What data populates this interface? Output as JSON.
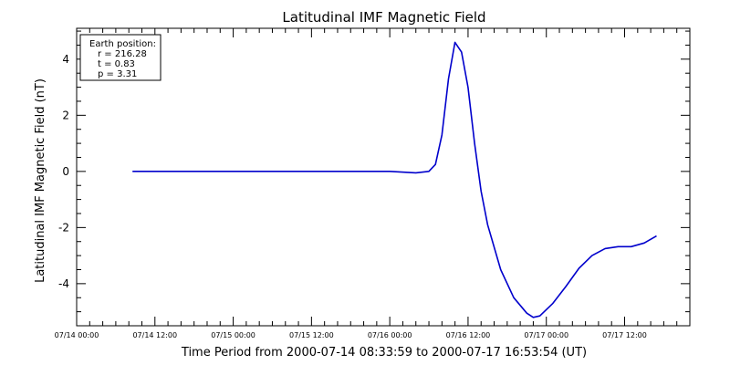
{
  "chart_data": {
    "type": "line",
    "title": "Latitudinal IMF Magnetic Field",
    "xlabel": "Time Period from 2000-07-14 08:33:59 to 2000-07-17 16:53:54 (UT)",
    "ylabel": "Latitudinal IMF Magnetic Field (nT)",
    "xlim": [
      "2000-07-14T00:00",
      "2000-07-17T22:00"
    ],
    "ylim": [
      -5.5,
      5.1
    ],
    "x_tick_labels": [
      "07/14 00:00",
      "07/14 12:00",
      "07/15 00:00",
      "07/15 12:00",
      "07/16 00:00",
      "07/16 12:00",
      "07/17 00:00",
      "07/17 12:00"
    ],
    "x_ticks": [
      "2000-07-14T00:00",
      "2000-07-14T12:00",
      "2000-07-15T00:00",
      "2000-07-15T12:00",
      "2000-07-16T00:00",
      "2000-07-16T12:00",
      "2000-07-17T00:00",
      "2000-07-17T12:00"
    ],
    "y_ticks": [
      4,
      2,
      0,
      -2,
      -4
    ],
    "y_tick_labels": [
      "4",
      "2",
      "0",
      "-2",
      "-4"
    ],
    "grid": false,
    "legend_box": {
      "placement": "top-left",
      "lines": [
        "Earth position:",
        "r = 216.28",
        "t = 0.83",
        "p = 3.31"
      ]
    },
    "series": [
      {
        "color": "#0000cc",
        "points": [
          [
            "2000-07-14T08:34",
            0.0
          ],
          [
            "2000-07-16T00:00",
            0.0
          ],
          [
            "2000-07-16T04:00",
            -0.05
          ],
          [
            "2000-07-16T06:00",
            0.0
          ],
          [
            "2000-07-16T07:00",
            0.25
          ],
          [
            "2000-07-16T08:00",
            1.3
          ],
          [
            "2000-07-16T09:00",
            3.3
          ],
          [
            "2000-07-16T10:00",
            4.6
          ],
          [
            "2000-07-16T11:00",
            4.25
          ],
          [
            "2000-07-16T12:00",
            3.0
          ],
          [
            "2000-07-16T13:00",
            1.0
          ],
          [
            "2000-07-16T14:00",
            -0.7
          ],
          [
            "2000-07-16T15:00",
            -1.9
          ],
          [
            "2000-07-16T17:00",
            -3.5
          ],
          [
            "2000-07-16T19:00",
            -4.5
          ],
          [
            "2000-07-16T21:00",
            -5.05
          ],
          [
            "2000-07-16T22:00",
            -5.2
          ],
          [
            "2000-07-16T23:00",
            -5.15
          ],
          [
            "2000-07-17T01:00",
            -4.7
          ],
          [
            "2000-07-17T03:00",
            -4.1
          ],
          [
            "2000-07-17T05:00",
            -3.45
          ],
          [
            "2000-07-17T07:00",
            -3.0
          ],
          [
            "2000-07-17T09:00",
            -2.75
          ],
          [
            "2000-07-17T11:00",
            -2.68
          ],
          [
            "2000-07-17T13:00",
            -2.68
          ],
          [
            "2000-07-17T15:00",
            -2.55
          ],
          [
            "2000-07-17T16:54",
            -2.3
          ]
        ]
      }
    ]
  }
}
